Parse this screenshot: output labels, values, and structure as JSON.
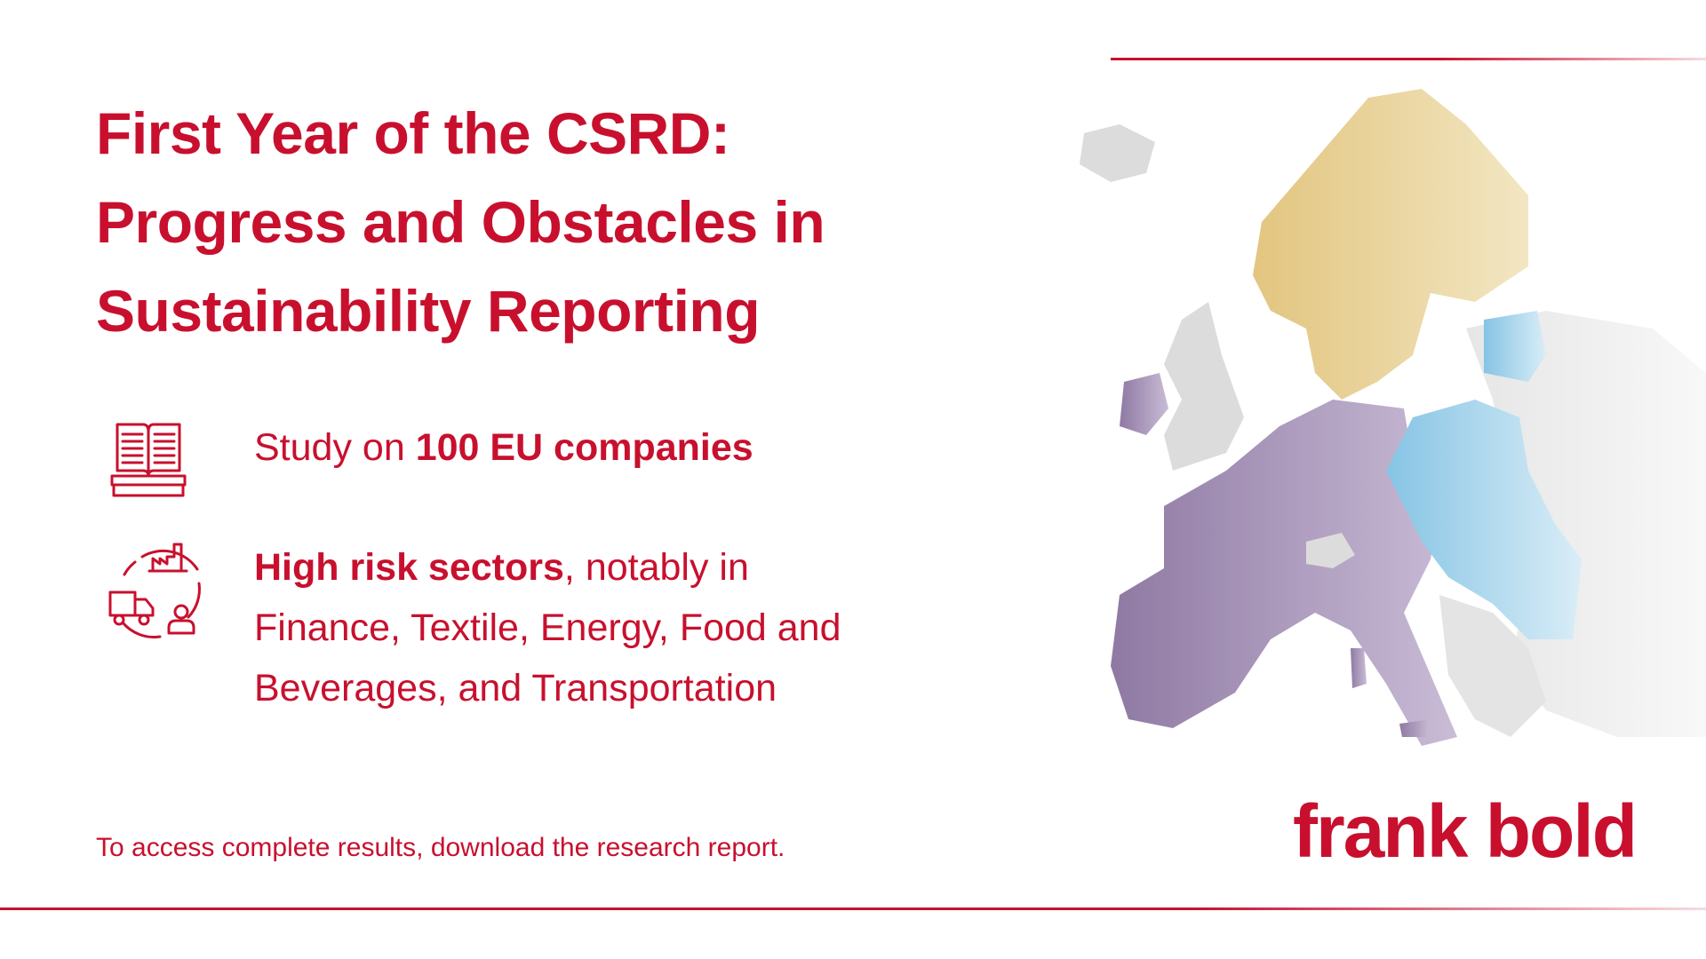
{
  "title": {
    "line1": "First Year of the CSRD:",
    "line2": "Progress and Obstacles in",
    "line3": "Sustainability Reporting"
  },
  "study": {
    "icon": "open-book-icon",
    "prefix": "Study on ",
    "bold": "100 EU companies"
  },
  "sectors": {
    "icon": "truck-factory-person-icon",
    "bold": "High risk sectors",
    "rest_line1": ", notably in",
    "line2": "Finance, Textile, Energy, Food and",
    "line3": "Beverages, and Transportation"
  },
  "footnote": "To access complete results, download the research report.",
  "logo": "frank bold",
  "map": {
    "icon": "europe-map"
  },
  "colors": {
    "accent": "#c8102e",
    "purple": "#8f79a3",
    "blue": "#8cc7e6",
    "gold": "#e5cf8e",
    "grey": "#dcdcdc"
  }
}
